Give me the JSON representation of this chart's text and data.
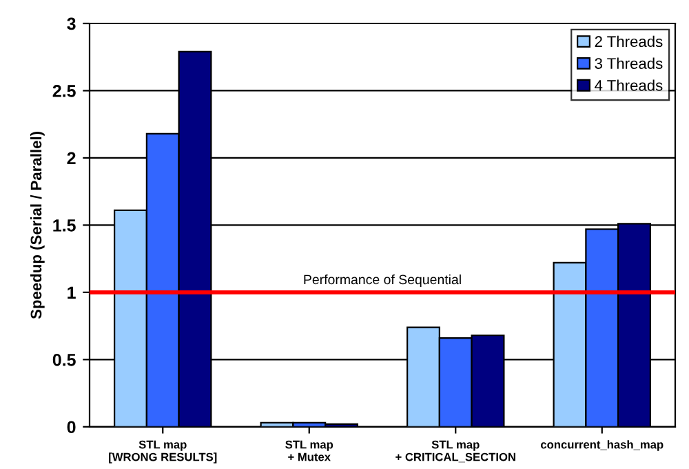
{
  "chart_data": {
    "type": "bar",
    "ylabel": "Speedup (Serial / Parallel)",
    "categories": [
      "STL map\n[WRONG RESULTS]",
      "STL map\n+ Mutex",
      "STL map\n+ CRITICAL_SECTION",
      "concurrent_hash_map"
    ],
    "series": [
      {
        "name": "2 Threads",
        "color": "#99ccff",
        "values": [
          1.61,
          0.03,
          0.74,
          1.22
        ]
      },
      {
        "name": "3 Threads",
        "color": "#3366ff",
        "values": [
          2.18,
          0.03,
          0.66,
          1.47
        ]
      },
      {
        "name": "4 Threads",
        "color": "#000080",
        "values": [
          2.79,
          0.02,
          0.68,
          1.51
        ]
      }
    ],
    "ylim": [
      0,
      3
    ],
    "yticks": [
      0,
      0.5,
      1,
      1.5,
      2,
      2.5,
      3
    ],
    "grid": "y",
    "legend": "top right",
    "ref_lines": [
      {
        "axis": "y",
        "value": 1,
        "label": "Performance of Sequential",
        "color": "#ff0000"
      }
    ]
  }
}
